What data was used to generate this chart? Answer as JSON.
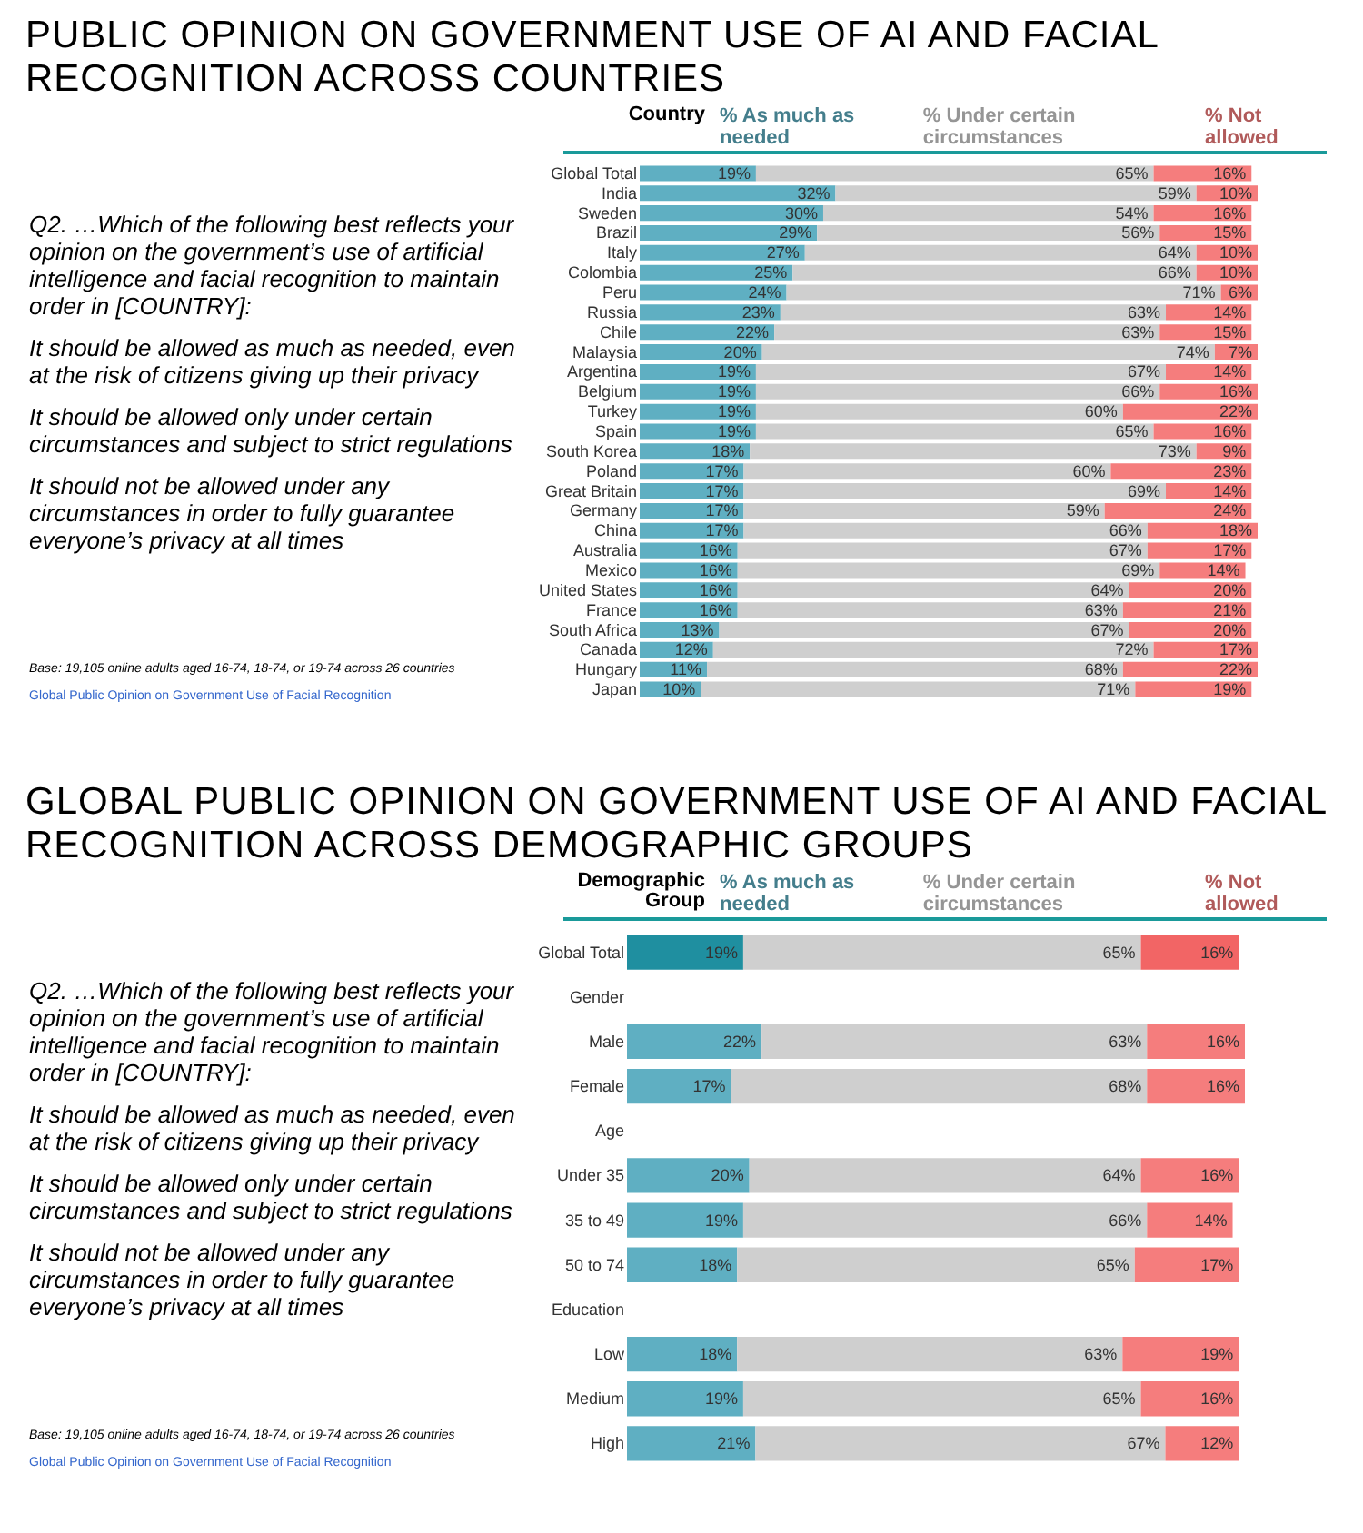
{
  "chart_data": [
    {
      "type": "bar",
      "orientation": "horizontal",
      "stacked": true,
      "legend": "top",
      "tick_labels": "y",
      "title": "PUBLIC OPINION ON GOVERNMENT USE OF AI AND FACIAL RECOGNITION ACROSS COUNTRIES",
      "ylabel": "Country",
      "annotations": [
        "Q2. …Which of the following best reflects your opinion on the government’s use of artificial intelligence and facial recognition to maintain order in [COUNTRY]:",
        "It should be allowed as much as needed, even at the risk of citizens giving up their privacy",
        "It should be allowed only under certain circumstances and subject to strict regulations",
        "It should not be allowed under any circumstances in order to fully guarantee everyone’s privacy at all times",
        "Base:  19,105 online adults aged 16-74, 18-74, or 19-74 across 26 countries",
        "Global Public Opinion on Government Use of Facial Recognition"
      ],
      "categories": [
        "Global Total",
        "India",
        "Sweden",
        "Brazil",
        "Italy",
        "Colombia",
        "Peru",
        "Russia",
        "Chile",
        "Malaysia",
        "Argentina",
        "Belgium",
        "Turkey",
        "Spain",
        "South Korea",
        "Poland",
        "Great Britain",
        "Germany",
        "China",
        "Australia",
        "Mexico",
        "United States",
        "France",
        "South Africa",
        "Canada",
        "Hungary",
        "Japan"
      ],
      "series": [
        {
          "name": "% As much as needed",
          "color": "#5fafc2",
          "values": [
            19,
            32,
            30,
            29,
            27,
            25,
            24,
            23,
            22,
            20,
            19,
            19,
            19,
            19,
            18,
            17,
            17,
            17,
            17,
            16,
            16,
            16,
            16,
            13,
            12,
            11,
            10
          ],
          "value_labels": [
            "19%",
            "32%",
            "30%",
            "29%",
            "27%",
            "25%",
            "24%",
            "23%",
            "22%",
            "20%",
            "19%",
            "19%",
            "19%",
            "19%",
            "18%",
            "17%",
            "17%",
            "17%",
            "17%",
            "16%",
            "16%",
            "16%",
            "16%",
            "13%",
            "12%",
            "11%",
            "10%"
          ]
        },
        {
          "name": "% Under certain circumstances",
          "color": "#cfcfcf",
          "values": [
            65,
            59,
            54,
            56,
            64,
            66,
            71,
            63,
            63,
            74,
            67,
            66,
            60,
            65,
            73,
            60,
            69,
            59,
            66,
            67,
            69,
            64,
            63,
            67,
            72,
            68,
            71
          ],
          "value_labels": [
            "65%",
            "59%",
            "54%",
            "56%",
            "64%",
            "66%",
            "71%",
            "63%",
            "63%",
            "74%",
            "67%",
            "66%",
            "60%",
            "65%",
            "73%",
            "60%",
            "69%",
            "59%",
            "66%",
            "67%",
            "69%",
            "64%",
            "63%",
            "67%",
            "72%",
            "68%",
            "71%"
          ]
        },
        {
          "name": "% Not allowed",
          "color": "#f57d7d",
          "values": [
            16,
            10,
            16,
            15,
            10,
            10,
            6,
            14,
            15,
            7,
            14,
            16,
            22,
            16,
            9,
            23,
            14,
            24,
            18,
            17,
            14,
            20,
            21,
            20,
            17,
            22,
            19
          ],
          "value_labels": [
            "16%",
            "10%",
            "16%",
            "15%",
            "10%",
            "10%",
            "6%",
            "14%",
            "15%",
            "7%",
            "14%",
            "16%",
            "22%",
            "16%",
            "9%",
            "23%",
            "14%",
            "24%",
            "18%",
            "17%",
            "14%",
            "20%",
            "21%",
            "20%",
            "17%",
            "22%",
            "19%"
          ]
        }
      ]
    },
    {
      "type": "bar",
      "orientation": "horizontal",
      "stacked": true,
      "legend": "top",
      "tick_labels": "y",
      "title": "GLOBAL PUBLIC OPINION ON GOVERNMENT USE OF AI AND FACIAL RECOGNITION ACROSS DEMOGRAPHIC GROUPS",
      "ylabel": "Demographic Group",
      "annotations": [
        "Q2. …Which of the following best reflects your opinion on the government’s use of artificial intelligence and facial recognition to maintain order in [COUNTRY]:",
        "It should be allowed as much as needed, even at the risk of citizens giving up their privacy",
        "It should be allowed only under certain circumstances and subject to strict regulations",
        "It should not be allowed under any circumstances in order to fully guarantee everyone’s privacy at all times",
        "Base:  19,105 online adults aged 16-74, 18-74, or 19-74 across 26 countries",
        "Global Public Opinion on Government Use of Facial Recognition"
      ],
      "categories": [
        "Global Total",
        "Gender",
        "Male",
        "Female",
        "Age",
        "Under 35",
        "35 to 49",
        "50 to 74",
        "Education",
        "Low",
        "Medium",
        "High"
      ],
      "series": [
        {
          "name": "% As much as needed",
          "color": "#5fafc2",
          "colors": [
            "#1f8fa0",
            null,
            "#5fafc2",
            "#5fafc2",
            null,
            "#5fafc2",
            "#5fafc2",
            "#5fafc2",
            null,
            "#5fafc2",
            "#5fafc2",
            "#5fafc2"
          ],
          "values": [
            19,
            null,
            22,
            17,
            null,
            20,
            19,
            18,
            null,
            18,
            19,
            21
          ],
          "value_labels": [
            "19%",
            null,
            "22%",
            "17%",
            null,
            "20%",
            "19%",
            "18%",
            null,
            "18%",
            "19%",
            "21%"
          ]
        },
        {
          "name": "% Under certain circumstances",
          "color": "#cfcfcf",
          "values": [
            65,
            null,
            63,
            68,
            null,
            64,
            66,
            65,
            null,
            63,
            65,
            67
          ],
          "value_labels": [
            "65%",
            null,
            "63%",
            "68%",
            null,
            "64%",
            "66%",
            "65%",
            null,
            "63%",
            "65%",
            "67%"
          ]
        },
        {
          "name": "% Not allowed",
          "color": "#f57d7d",
          "colors": [
            "#f26565",
            null,
            "#f57d7d",
            "#f57d7d",
            null,
            "#f57d7d",
            "#f57d7d",
            "#f57d7d",
            null,
            "#f57d7d",
            "#f57d7d",
            "#f57d7d"
          ],
          "values": [
            16,
            null,
            16,
            16,
            null,
            16,
            14,
            17,
            null,
            19,
            16,
            12
          ],
          "value_labels": [
            "16%",
            null,
            "16%",
            "16%",
            null,
            "16%",
            "14%",
            "17%",
            null,
            "19%",
            "16%",
            "12%"
          ]
        }
      ]
    }
  ]
}
